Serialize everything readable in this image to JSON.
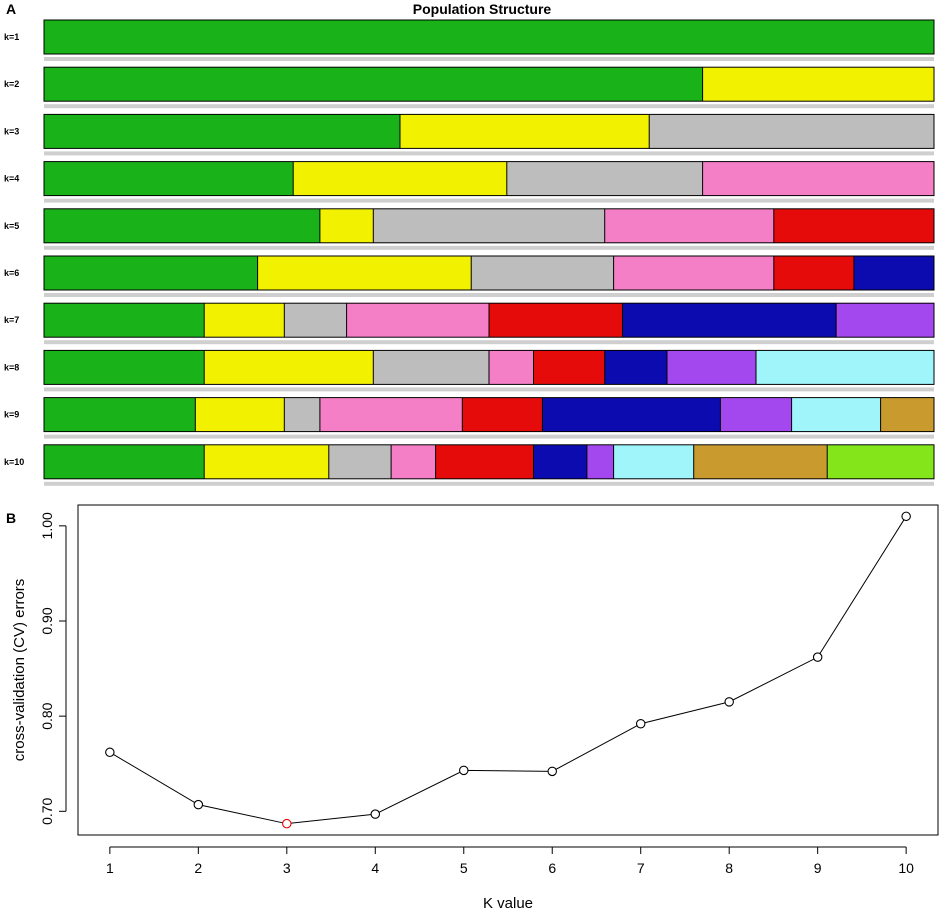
{
  "panels": {
    "a": {
      "letter": "A",
      "title": "Population Structure",
      "rows": [
        {
          "label": "k=1",
          "segments": [
            [
              "green",
              1.0
            ]
          ]
        },
        {
          "label": "k=2",
          "segments": [
            [
              "green",
              0.74
            ],
            [
              "yellow",
              0.26
            ]
          ]
        },
        {
          "label": "k=3",
          "segments": [
            [
              "green",
              0.4
            ],
            [
              "yellow",
              0.28
            ],
            [
              "gray",
              0.32
            ]
          ]
        },
        {
          "label": "k=4",
          "segments": [
            [
              "green",
              0.28
            ],
            [
              "yellow",
              0.24
            ],
            [
              "gray",
              0.22
            ],
            [
              "pink",
              0.26
            ]
          ]
        },
        {
          "label": "k=5",
          "segments": [
            [
              "green",
              0.31
            ],
            [
              "yellow",
              0.06
            ],
            [
              "gray",
              0.26
            ],
            [
              "pink",
              0.19
            ],
            [
              "red",
              0.18
            ]
          ]
        },
        {
          "label": "k=6",
          "segments": [
            [
              "green",
              0.24
            ],
            [
              "yellow",
              0.24
            ],
            [
              "gray",
              0.16
            ],
            [
              "pink",
              0.18
            ],
            [
              "red",
              0.09
            ],
            [
              "blue",
              0.09
            ]
          ]
        },
        {
          "label": "k=7",
          "segments": [
            [
              "green",
              0.18
            ],
            [
              "yellow",
              0.09
            ],
            [
              "gray",
              0.07
            ],
            [
              "pink",
              0.16
            ],
            [
              "red",
              0.15
            ],
            [
              "blue",
              0.24
            ],
            [
              "purple",
              0.11
            ]
          ]
        },
        {
          "label": "k=8",
          "segments": [
            [
              "green",
              0.18
            ],
            [
              "yellow",
              0.19
            ],
            [
              "gray",
              0.13
            ],
            [
              "pink",
              0.05
            ],
            [
              "red",
              0.08
            ],
            [
              "blue",
              0.07
            ],
            [
              "purple",
              0.1
            ],
            [
              "cyan",
              0.2
            ]
          ]
        },
        {
          "label": "k=9",
          "segments": [
            [
              "green",
              0.17
            ],
            [
              "yellow",
              0.1
            ],
            [
              "gray",
              0.04
            ],
            [
              "pink",
              0.16
            ],
            [
              "red",
              0.09
            ],
            [
              "blue",
              0.2
            ],
            [
              "purple",
              0.08
            ],
            [
              "cyan",
              0.1
            ],
            [
              "gold",
              0.06
            ]
          ]
        },
        {
          "label": "k=10",
          "segments": [
            [
              "green",
              0.18
            ],
            [
              "yellow",
              0.14
            ],
            [
              "gray",
              0.07
            ],
            [
              "pink",
              0.05
            ],
            [
              "red",
              0.11
            ],
            [
              "blue",
              0.06
            ],
            [
              "purple",
              0.03
            ],
            [
              "cyan",
              0.09
            ],
            [
              "gold",
              0.15
            ],
            [
              "lime",
              0.12
            ]
          ]
        }
      ]
    },
    "b": {
      "letter": "B"
    }
  },
  "colors": {
    "green": "#19b319",
    "yellow": "#f2f200",
    "gray": "#bdbdbd",
    "pink": "#f47fc6",
    "red": "#e60b0b",
    "blue": "#0b0bb0",
    "purple": "#a347ef",
    "cyan": "#9ff5f9",
    "gold": "#c99a2e",
    "lime": "#84e61a",
    "highlight_point": "#e60000"
  },
  "chart_data": {
    "type": "line",
    "x": [
      1,
      2,
      3,
      4,
      5,
      6,
      7,
      8,
      9,
      10
    ],
    "y": [
      0.762,
      0.707,
      0.687,
      0.697,
      0.743,
      0.742,
      0.792,
      0.815,
      0.862,
      1.01
    ],
    "xlabel": "K value",
    "ylabel": "cross-validation (CV) errors",
    "xticks": [
      "1",
      "2",
      "3",
      "4",
      "5",
      "6",
      "7",
      "8",
      "9",
      "10"
    ],
    "yticks": [
      "0.70",
      "0.80",
      "0.90",
      "1.00"
    ],
    "ytick_values": [
      0.7,
      0.8,
      0.9,
      1.0
    ],
    "xlim": [
      0.64,
      10.36
    ],
    "ylim": [
      0.6751,
      1.0219
    ],
    "highlight_index": 2
  }
}
